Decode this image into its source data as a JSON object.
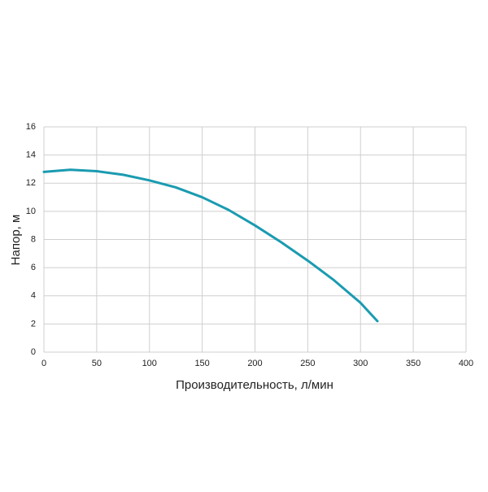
{
  "chart_data": {
    "type": "line",
    "x_label": "Производительность, л/мин",
    "y_label": "Напор, м",
    "x": [
      0,
      25,
      50,
      75,
      100,
      125,
      150,
      175,
      200,
      225,
      250,
      275,
      300,
      316
    ],
    "series": [
      {
        "color": "#1a9bb1",
        "values": [
          12.8,
          12.95,
          12.85,
          12.6,
          12.2,
          11.7,
          11.0,
          10.1,
          9.0,
          7.8,
          6.5,
          5.1,
          3.5,
          2.2
        ]
      }
    ],
    "xlim": [
      0,
      400
    ],
    "xticks": [
      0,
      50,
      100,
      150,
      200,
      250,
      300,
      350,
      400
    ],
    "ylim": [
      0,
      16
    ],
    "yticks": [
      0,
      2,
      4,
      6,
      8,
      10,
      12,
      14,
      16
    ],
    "grid": true
  }
}
